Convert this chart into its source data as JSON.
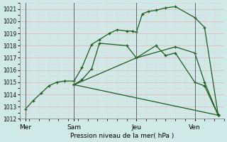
{
  "xlabel": "Pression niveau de la mer( hPa )",
  "bg_color": "#cfe8e8",
  "grid_color_major": "#e8b8b8",
  "grid_color_minor": "#f0d0d0",
  "line_color": "#1a5c1a",
  "ylim": [
    1012,
    1021.5
  ],
  "yticks": [
    1012,
    1013,
    1014,
    1015,
    1016,
    1017,
    1018,
    1019,
    1020,
    1021
  ],
  "xlim": [
    0,
    10.5
  ],
  "day_labels": [
    "Mer",
    "Sam",
    "Jeu",
    "Ven"
  ],
  "day_positions": [
    0.3,
    2.8,
    6.0,
    9.0
  ],
  "vline_positions": [
    0.3,
    2.8,
    6.0,
    9.0
  ],
  "series": [
    {
      "x": [
        0.3,
        0.7,
        1.1,
        1.5,
        1.9,
        2.3,
        2.8,
        3.2,
        3.7,
        4.1,
        4.6,
        5.0,
        5.5,
        5.8,
        6.0,
        6.3,
        6.6,
        7.0,
        7.5,
        8.0,
        9.0,
        9.5,
        10.2
      ],
      "y": [
        1012.8,
        1013.5,
        1014.1,
        1014.7,
        1015.0,
        1015.1,
        1015.1,
        1016.2,
        1018.1,
        1018.5,
        1019.0,
        1019.3,
        1019.2,
        1019.2,
        1019.1,
        1020.6,
        1020.8,
        1020.9,
        1021.1,
        1021.2,
        1020.3,
        1019.5,
        1012.3
      ]
    },
    {
      "x": [
        2.8,
        3.2,
        3.7,
        4.1,
        5.5,
        6.0,
        7.0,
        7.5,
        8.0,
        9.0,
        9.5,
        10.2
      ],
      "y": [
        1014.8,
        1015.2,
        1016.1,
        1018.2,
        1018.0,
        1017.0,
        1018.0,
        1017.2,
        1017.4,
        1015.0,
        1014.7,
        1012.3
      ]
    },
    {
      "x": [
        2.8,
        6.0,
        8.0,
        9.0,
        9.5,
        10.2
      ],
      "y": [
        1014.8,
        1017.0,
        1017.9,
        1017.4,
        1015.0,
        1012.3
      ]
    },
    {
      "x": [
        2.8,
        10.2
      ],
      "y": [
        1014.8,
        1012.3
      ]
    }
  ]
}
